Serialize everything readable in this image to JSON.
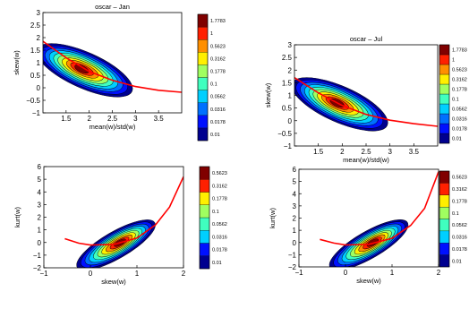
{
  "colormap": [
    "#00008f",
    "#0010ff",
    "#0070ff",
    "#00cfff",
    "#40ffbf",
    "#a0ff60",
    "#ffef00",
    "#ff8f00",
    "#ff2000",
    "#800000"
  ],
  "curve_color": "#ff0000",
  "chart_data": [
    {
      "id": "jan-mean-skew",
      "type": "heatmap",
      "title": "oscar – Jan",
      "xlabel": "mean(w)/std(w)",
      "ylabel": "skew(w)",
      "xlim": [
        1,
        4
      ],
      "ylim": [
        -1,
        3
      ],
      "xticks": [
        "1.5",
        "2",
        "2.5",
        "3",
        "3.5"
      ],
      "yticks": [
        "−1",
        "−0.5",
        "0",
        "0.5",
        "1",
        "1.5",
        "2",
        "2.5",
        "3"
      ],
      "colorbar_ticks": [
        "0.01",
        "0.0178",
        "0.0316",
        "0.0562",
        "0.1",
        "0.1778",
        "0.3162",
        "0.5623",
        "1",
        "1.7783"
      ],
      "density_peak": {
        "x": 1.9,
        "y": 0.7
      },
      "fit_curve": [
        [
          1,
          1.85
        ],
        [
          1.5,
          1.2
        ],
        [
          2,
          0.65
        ],
        [
          2.5,
          0.3
        ],
        [
          3,
          0.05
        ],
        [
          3.5,
          -0.1
        ],
        [
          4,
          -0.18
        ]
      ]
    },
    {
      "id": "jul-mean-skew",
      "type": "heatmap",
      "title": "oscar – Jul",
      "xlabel": "mean(w)/std(w)",
      "ylabel": "skew(w)",
      "xlim": [
        1,
        4
      ],
      "ylim": [
        -1,
        3
      ],
      "xticks": [
        "1.5",
        "2",
        "2.5",
        "3",
        "3.5"
      ],
      "yticks": [
        "−1",
        "−0.5",
        "0",
        "0.5",
        "1",
        "1.5",
        "2",
        "2.5",
        "3"
      ],
      "colorbar_ticks": [
        "0.01",
        "0.0178",
        "0.0316",
        "0.0562",
        "0.1",
        "0.1778",
        "0.3162",
        "0.5623",
        "1",
        "1.7783"
      ],
      "density_peak": {
        "x": 1.95,
        "y": 0.65
      },
      "fit_curve": [
        [
          1,
          1.7
        ],
        [
          1.5,
          1.1
        ],
        [
          2,
          0.6
        ],
        [
          2.5,
          0.25
        ],
        [
          3,
          0.02
        ],
        [
          3.5,
          -0.12
        ],
        [
          4,
          -0.22
        ]
      ]
    },
    {
      "id": "jan-skew-kurt",
      "type": "heatmap",
      "title": "",
      "xlabel": "skew(w)",
      "ylabel": "kurt(w)",
      "xlim": [
        -1,
        2
      ],
      "ylim": [
        -2,
        6
      ],
      "xticks": [
        "−1",
        "0",
        "1",
        "2"
      ],
      "yticks": [
        "−2",
        "−1",
        "0",
        "1",
        "2",
        "3",
        "4",
        "5",
        "6"
      ],
      "colorbar_ticks": [
        "0.01",
        "0.0178",
        "0.0316",
        "0.0562",
        "0.1",
        "0.1778",
        "0.3162",
        "0.5623"
      ],
      "density_peak": {
        "x": 0.55,
        "y": -0.2
      },
      "fit_curve": [
        [
          -0.55,
          0.3
        ],
        [
          -0.25,
          -0.05
        ],
        [
          0,
          -0.2
        ],
        [
          0.5,
          -0.15
        ],
        [
          1,
          0.35
        ],
        [
          1.4,
          1.4
        ],
        [
          1.7,
          2.8
        ],
        [
          2,
          5.2
        ]
      ]
    },
    {
      "id": "jul-skew-kurt",
      "type": "heatmap",
      "title": "",
      "xlabel": "skew(w)",
      "ylabel": "kurt(w)",
      "xlim": [
        -1,
        2
      ],
      "ylim": [
        -2,
        6
      ],
      "xticks": [
        "−1",
        "0",
        "1",
        "2"
      ],
      "yticks": [
        "−2",
        "−1",
        "0",
        "1",
        "2",
        "3",
        "4",
        "5",
        "6"
      ],
      "colorbar_ticks": [
        "0.01",
        "0.0178",
        "0.0316",
        "0.0562",
        "0.1",
        "0.1778",
        "0.3162",
        "0.5623"
      ],
      "density_peak": {
        "x": 0.5,
        "y": -0.2
      },
      "fit_curve": [
        [
          -0.55,
          0.25
        ],
        [
          -0.25,
          -0.05
        ],
        [
          0,
          -0.2
        ],
        [
          0.5,
          -0.15
        ],
        [
          1,
          0.35
        ],
        [
          1.4,
          1.4
        ],
        [
          1.7,
          2.8
        ],
        [
          2,
          5.8
        ]
      ]
    }
  ]
}
